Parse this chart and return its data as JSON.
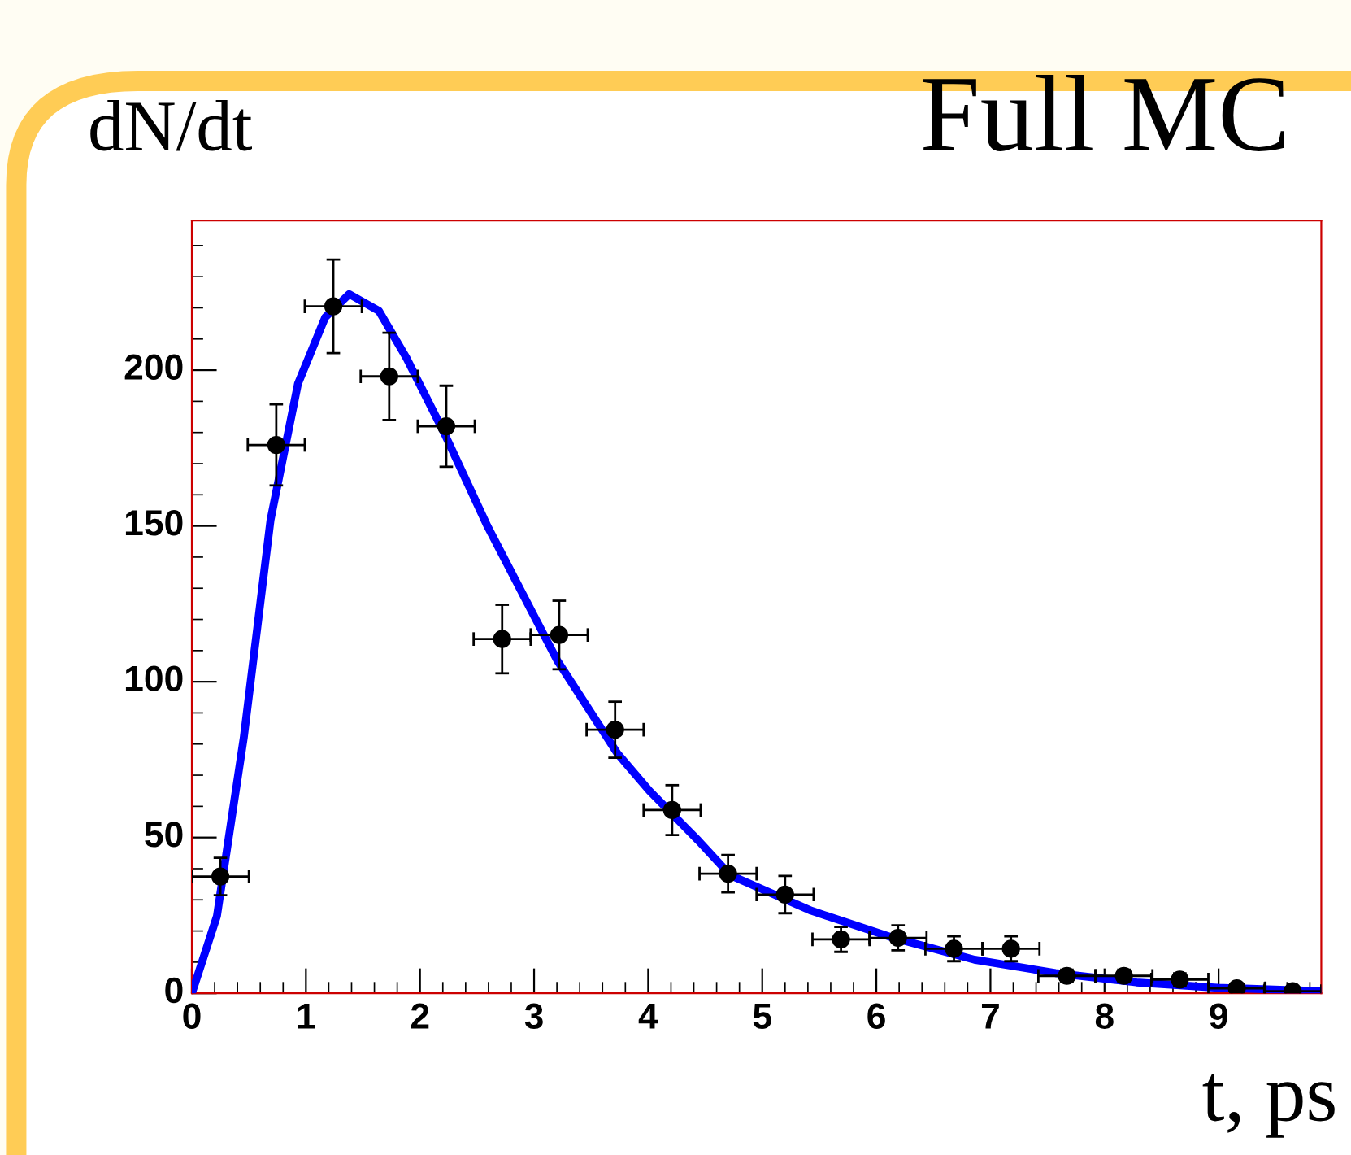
{
  "chart_data": {
    "type": "scatter",
    "title": "Full MC",
    "xlabel": "t, ps",
    "ylabel": "dN/dt",
    "xlim": [
      0,
      9.9
    ],
    "ylim": [
      0,
      248
    ],
    "xticks": [
      0,
      1,
      2,
      3,
      4,
      5,
      6,
      7,
      8,
      9
    ],
    "yticks": [
      0,
      50,
      100,
      150,
      200
    ],
    "grid": false,
    "legend": false,
    "series": [
      {
        "color": "#000000",
        "marker": "circle",
        "x": [
          0.25,
          0.74,
          1.24,
          1.73,
          2.23,
          2.72,
          3.22,
          3.71,
          4.21,
          4.7,
          5.2,
          5.69,
          6.19,
          6.68,
          7.18,
          7.67,
          8.17,
          8.66,
          9.16,
          9.65
        ],
        "values": [
          37.5,
          176,
          220.5,
          198,
          182,
          113.7,
          115,
          84.6,
          58.8,
          38.4,
          31.7,
          17.3,
          17.8,
          14.3,
          14.3,
          5.6,
          5.6,
          4.4,
          1.6,
          0.7
        ],
        "errors": [
          6,
          13,
          15,
          14,
          13,
          11,
          11,
          9,
          8,
          6,
          6,
          4,
          4,
          4,
          4,
          2,
          2,
          2,
          1,
          null
        ],
        "xerrors": [
          0.25,
          0.25,
          0.25,
          0.25,
          0.25,
          0.25,
          0.25,
          0.25,
          0.25,
          0.25,
          0.25,
          0.25,
          0.25,
          0.25,
          0.25,
          0.25,
          0.25,
          0.25,
          0.25,
          0.25
        ]
      },
      {
        "type": "line",
        "color": "#0000ff",
        "line_style": "solid",
        "marker": "none",
        "x": [
          0,
          0.22,
          0.455,
          0.69,
          0.93,
          1.17,
          1.38,
          1.64,
          1.88,
          2.21,
          2.59,
          3.2,
          3.73,
          4.01,
          4.44,
          4.72,
          5.43,
          6.15,
          6.86,
          7.57,
          8.28,
          8.99,
          9.89
        ],
        "values": [
          0,
          24.8,
          82,
          152,
          195.6,
          217,
          224.4,
          219,
          204,
          180,
          150,
          107,
          77,
          65,
          49,
          37.9,
          26.5,
          17.8,
          10.8,
          6.5,
          3.5,
          1.8,
          0.7
        ]
      }
    ]
  }
}
